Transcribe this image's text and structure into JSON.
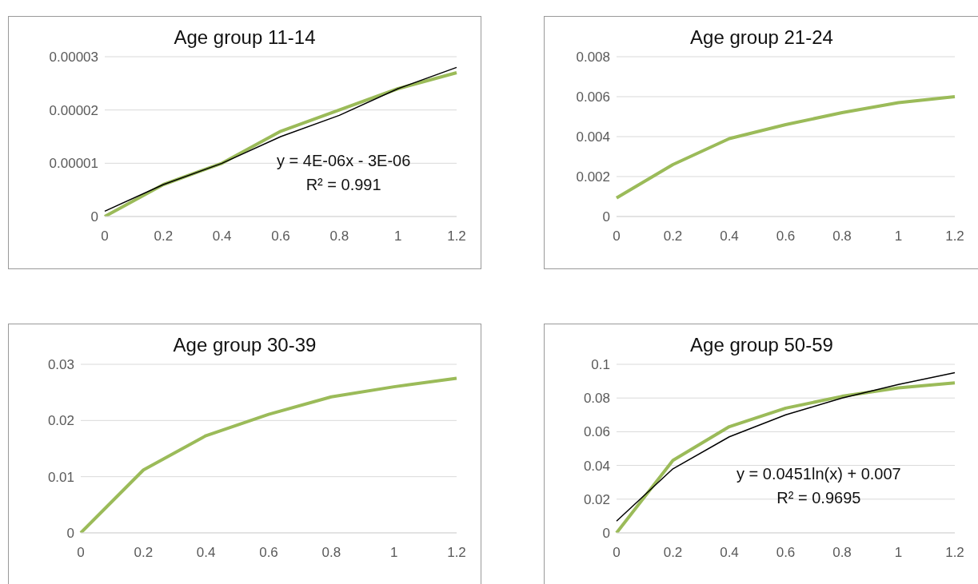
{
  "chart_data": [
    {
      "type": "line",
      "title": "Age group 11-14",
      "categories": [
        "0",
        "0.2",
        "0.4",
        "0.6",
        "0.8",
        "1",
        "1.2"
      ],
      "series": [
        {
          "color": "#9bbb59",
          "values": [
            0,
            6e-06,
            1e-05,
            1.6e-05,
            2e-05,
            2.4e-05,
            2.7e-05
          ]
        },
        {
          "type": "line",
          "color": "#000000",
          "values": [
            1e-06,
            6e-06,
            1e-05,
            1.5e-05,
            1.9e-05,
            2.4e-05,
            2.8e-05
          ]
        }
      ],
      "ylim": [
        0,
        3e-05
      ],
      "yticks": [
        0,
        {
          "value": 1e-05,
          "label": "0.00001"
        },
        {
          "value": 2e-05,
          "label": "0.00002"
        },
        {
          "value": 3e-05,
          "label": "0.00003"
        }
      ],
      "grid": "y",
      "annotations": [
        "y = 4E-06x - 3E-06",
        "R² = 0.991"
      ]
    },
    {
      "type": "line",
      "title": "Age group 21-24",
      "categories": [
        "0",
        "0.2",
        "0.4",
        "0.6",
        "0.8",
        "1",
        "1.2"
      ],
      "series": [
        {
          "color": "#9bbb59",
          "values": [
            0.00093,
            0.0026,
            0.0039,
            0.0046,
            0.0052,
            0.0057,
            0.006
          ]
        }
      ],
      "ylim": [
        0,
        0.008
      ],
      "yticks": [
        0,
        0.002,
        0.004,
        0.006,
        0.008
      ],
      "grid": "y"
    },
    {
      "type": "line",
      "title": "Age group 30-39",
      "categories": [
        "0",
        "0.2",
        "0.4",
        "0.6",
        "0.8",
        "1",
        "1.2"
      ],
      "series": [
        {
          "color": "#9bbb59",
          "values": [
            0,
            0.0112,
            0.0173,
            0.0211,
            0.0242,
            0.026,
            0.0275
          ]
        }
      ],
      "ylim": [
        0,
        0.03
      ],
      "yticks": [
        0,
        0.01,
        0.02,
        0.03
      ],
      "grid": "y"
    },
    {
      "type": "line",
      "title": "Age group 50-59",
      "categories": [
        "0",
        "0.2",
        "0.4",
        "0.6",
        "0.8",
        "1",
        "1.2"
      ],
      "series": [
        {
          "color": "#9bbb59",
          "values": [
            0,
            0.043,
            0.063,
            0.074,
            0.081,
            0.086,
            0.089
          ]
        },
        {
          "type": "line",
          "color": "#000000",
          "values": [
            0.007,
            0.038,
            0.057,
            0.07,
            0.08,
            0.088,
            0.095
          ]
        }
      ],
      "ylim": [
        0,
        0.1
      ],
      "yticks": [
        0,
        0.02,
        0.04,
        0.06,
        0.08,
        0.1
      ],
      "grid": "y",
      "annotations": [
        "y = 0.0451ln(x) + 0.007",
        "R² = 0.9695"
      ]
    }
  ]
}
